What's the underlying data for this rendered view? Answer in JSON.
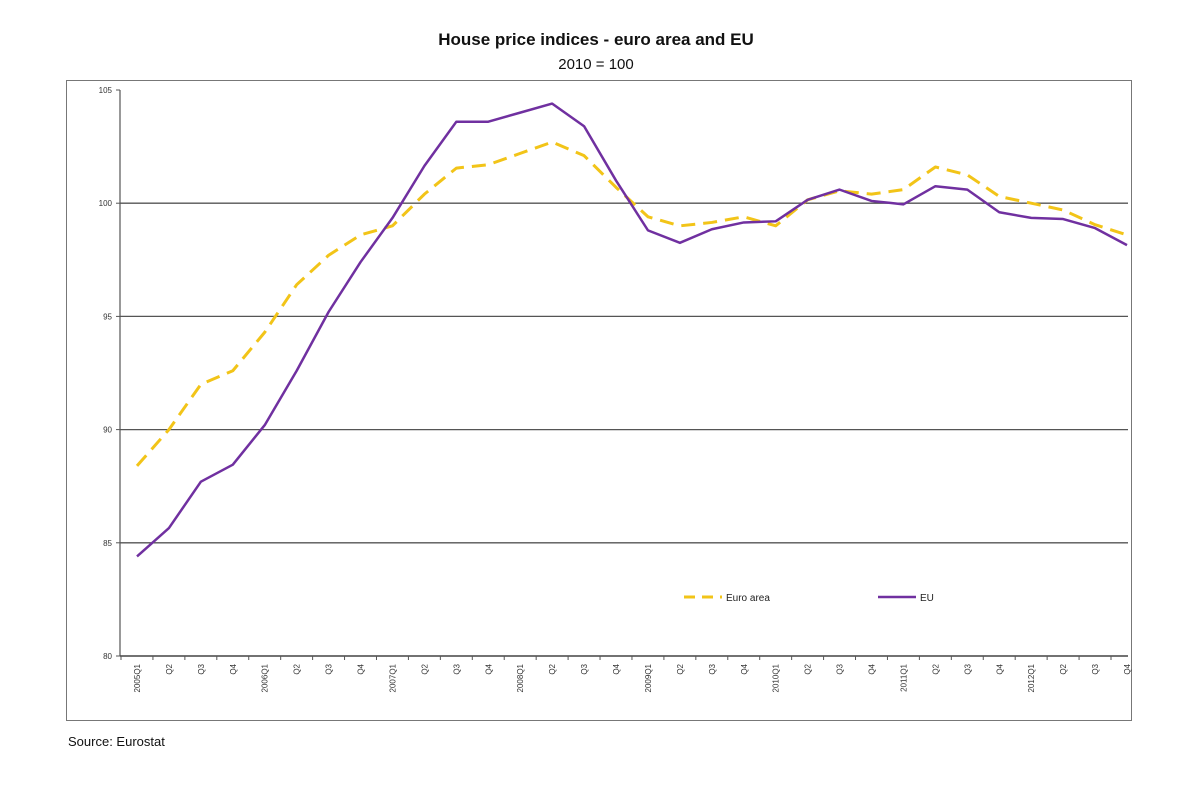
{
  "chart_data": {
    "type": "line",
    "title": "House price indices - euro area and EU",
    "subtitle": "2010 = 100",
    "source": "Source: Eurostat",
    "xlabel": "",
    "ylabel": "",
    "ylim": [
      80,
      105
    ],
    "yticks": [
      80,
      85,
      90,
      95,
      100,
      105
    ],
    "grid": true,
    "legend_position": "bottom-right",
    "x": [
      "2005Q1",
      "Q2",
      "Q3",
      "Q4",
      "2006Q1",
      "Q2",
      "Q3",
      "Q4",
      "2007Q1",
      "Q2",
      "Q3",
      "Q4",
      "2008Q1",
      "Q2",
      "Q3",
      "Q4",
      "2009Q1",
      "Q2",
      "Q3",
      "Q4",
      "2010Q1",
      "Q2",
      "Q3",
      "Q4",
      "2011Q1",
      "Q2",
      "Q3",
      "Q4",
      "2012Q1",
      "Q2",
      "Q3",
      "Q4"
    ],
    "series": [
      {
        "name": "Euro area",
        "color": "#f2c418",
        "style": "dashed",
        "values": [
          88.4,
          90.0,
          92.0,
          92.6,
          94.3,
          96.4,
          97.7,
          98.6,
          99.0,
          100.4,
          101.55,
          101.7,
          102.2,
          102.7,
          102.1,
          100.7,
          99.4,
          99.0,
          99.15,
          99.4,
          99.0,
          100.15,
          100.55,
          100.4,
          100.6,
          101.6,
          101.25,
          100.3,
          100.0,
          99.7,
          99.05,
          98.6
        ]
      },
      {
        "name": "EU",
        "color": "#7030a0",
        "style": "solid",
        "values": [
          84.4,
          85.65,
          87.7,
          88.45,
          90.2,
          92.6,
          95.2,
          97.4,
          99.35,
          101.65,
          103.6,
          103.6,
          104.0,
          104.4,
          103.4,
          101.0,
          98.8,
          98.25,
          98.85,
          99.15,
          99.2,
          100.15,
          100.6,
          100.1,
          99.95,
          100.75,
          100.6,
          99.6,
          99.35,
          99.3,
          98.9,
          98.15
        ]
      }
    ]
  }
}
